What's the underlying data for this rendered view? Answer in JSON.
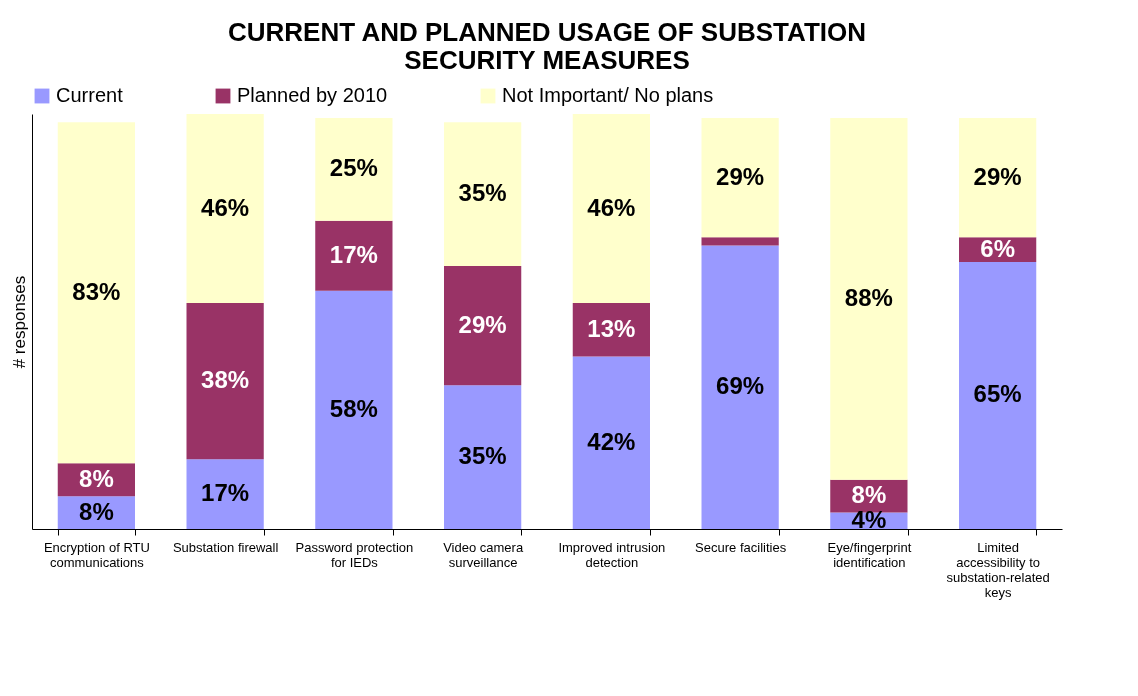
{
  "chart_data": {
    "type": "bar",
    "title": "CURRENT AND PLANNED USAGE OF SUBSTATION SECURITY MEASURES",
    "ylabel": "# responses",
    "stacked": true,
    "legend": "top",
    "tick_labels": "x",
    "ylim": [
      0,
      101
    ],
    "categories": [
      "Encryption of RTU communications",
      "Substation firewall",
      "Password protection for IEDs",
      "Video camera surveillance",
      "Improved intrusion detection",
      "Secure facilities",
      "Eye/fingerprint identification",
      "Limited accessibility to substation-related keys"
    ],
    "series": [
      {
        "name": "Current",
        "color": "#9999ff",
        "values": [
          8,
          17,
          58,
          35,
          42,
          69,
          4,
          65
        ],
        "value_labels": [
          "8%",
          "17%",
          "58%",
          "35%",
          "42%",
          "69%",
          "4%",
          "65%"
        ]
      },
      {
        "name": "Planned by 2010",
        "color": "#993366",
        "values": [
          8,
          38,
          17,
          29,
          13,
          2,
          8,
          6
        ],
        "value_labels": [
          "8%",
          "38%",
          "17%",
          "29%",
          "13%",
          null,
          "8%",
          "6%"
        ]
      },
      {
        "name": "Not Important/ No plans",
        "color": "#ffffcc",
        "values": [
          83,
          46,
          25,
          35,
          46,
          29,
          88,
          29
        ],
        "value_labels": [
          "83%",
          "46%",
          "25%",
          "35%",
          "46%",
          "29%",
          "88%",
          "29%"
        ]
      }
    ]
  }
}
